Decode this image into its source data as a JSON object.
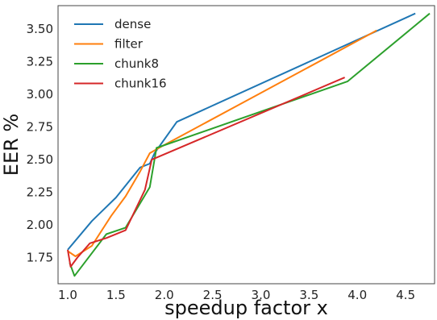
{
  "chart_data": {
    "type": "line",
    "title": "",
    "xlabel": "speedup factor x",
    "ylabel": "EER %",
    "xlim": [
      0.9,
      4.8
    ],
    "ylim": [
      1.55,
      3.68
    ],
    "xticks": [
      "1.0",
      "1.5",
      "2.0",
      "2.5",
      "3.0",
      "3.5",
      "4.0",
      "4.5"
    ],
    "xtick_values": [
      1.0,
      1.5,
      2.0,
      2.5,
      3.0,
      3.5,
      4.0,
      4.5
    ],
    "yticks": [
      "1.75",
      "2.00",
      "2.25",
      "2.50",
      "2.75",
      "3.00",
      "3.25",
      "3.50"
    ],
    "ytick_values": [
      1.75,
      2.0,
      2.25,
      2.5,
      2.75,
      3.0,
      3.25,
      3.5
    ],
    "grid": false,
    "legend_position": "top-left",
    "series": [
      {
        "name": "dense",
        "color": "#1f77b4",
        "points": [
          [
            1.0,
            1.81
          ],
          [
            1.25,
            2.03
          ],
          [
            1.5,
            2.21
          ],
          [
            1.75,
            2.44
          ],
          [
            1.85,
            2.47
          ],
          [
            1.9,
            2.55
          ],
          [
            2.13,
            2.79
          ],
          [
            4.6,
            3.62
          ]
        ]
      },
      {
        "name": "filter",
        "color": "#ff7f0e",
        "points": [
          [
            1.0,
            1.8
          ],
          [
            1.08,
            1.76
          ],
          [
            1.25,
            1.84
          ],
          [
            1.45,
            2.07
          ],
          [
            1.6,
            2.22
          ],
          [
            1.75,
            2.41
          ],
          [
            1.85,
            2.55
          ],
          [
            1.97,
            2.6
          ],
          [
            4.2,
            3.49
          ]
        ]
      },
      {
        "name": "chunk8",
        "color": "#2ca02c",
        "points": [
          [
            1.02,
            1.71
          ],
          [
            1.07,
            1.61
          ],
          [
            1.4,
            1.93
          ],
          [
            1.6,
            1.98
          ],
          [
            1.85,
            2.29
          ],
          [
            1.92,
            2.59
          ],
          [
            3.9,
            3.1
          ],
          [
            4.75,
            3.62
          ]
        ]
      },
      {
        "name": "chunk16",
        "color": "#d62728",
        "points": [
          [
            1.0,
            1.81
          ],
          [
            1.03,
            1.68
          ],
          [
            1.1,
            1.75
          ],
          [
            1.23,
            1.86
          ],
          [
            1.4,
            1.9
          ],
          [
            1.6,
            1.96
          ],
          [
            1.8,
            2.27
          ],
          [
            1.87,
            2.5
          ],
          [
            3.87,
            3.13
          ]
        ]
      }
    ]
  }
}
